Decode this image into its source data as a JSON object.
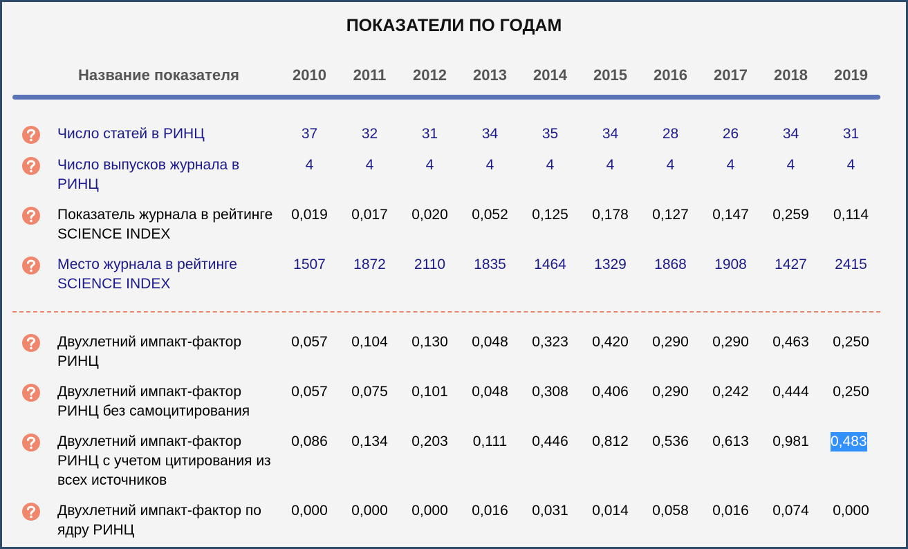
{
  "header": {
    "title": "ПОКАЗАТЕЛИ ПО ГОДАМ",
    "label_column": "Название показателя",
    "years": [
      "2010",
      "2011",
      "2012",
      "2013",
      "2014",
      "2015",
      "2016",
      "2017",
      "2018",
      "2019"
    ]
  },
  "table": {
    "rows": [
      {
        "label": "Число статей в РИНЦ",
        "color": "#1a1a8c",
        "values": [
          "37",
          "32",
          "31",
          "34",
          "35",
          "34",
          "28",
          "26",
          "34",
          "31"
        ]
      },
      {
        "label": "Число выпусков журнала в РИНЦ",
        "color": "#1a1a8c",
        "values": [
          "4",
          "4",
          "4",
          "4",
          "4",
          "4",
          "4",
          "4",
          "4",
          "4"
        ]
      },
      {
        "label": "Показатель журнала в рейтинге SCIENCE INDEX",
        "color": "#000000",
        "values": [
          "0,019",
          "0,017",
          "0,020",
          "0,052",
          "0,125",
          "0,178",
          "0,127",
          "0,147",
          "0,259",
          "0,114"
        ]
      },
      {
        "label": "Место журнала в рейтинге SCIENCE INDEX",
        "color": "#1a1a8c",
        "values": [
          "1507",
          "1872",
          "2110",
          "1835",
          "1464",
          "1329",
          "1868",
          "1908",
          "1427",
          "2415"
        ]
      },
      {
        "label": "Двухлетний импакт-фактор РИНЦ",
        "color": "#000000",
        "values": [
          "0,057",
          "0,104",
          "0,130",
          "0,048",
          "0,323",
          "0,420",
          "0,290",
          "0,290",
          "0,463",
          "0,250"
        ]
      },
      {
        "label": "Двухлетний импакт-фактор РИНЦ без самоцитирования",
        "color": "#000000",
        "values": [
          "0,057",
          "0,075",
          "0,101",
          "0,048",
          "0,308",
          "0,406",
          "0,290",
          "0,242",
          "0,444",
          "0,250"
        ]
      },
      {
        "label": "Двухлетний импакт-фактор РИНЦ с учетом цитирования из всех источников",
        "color": "#000000",
        "values": [
          "0,086",
          "0,134",
          "0,203",
          "0,111",
          "0,446",
          "0,812",
          "0,536",
          "0,613",
          "0,981",
          "0,483"
        ]
      },
      {
        "label": "Двухлетний импакт-фактор по ядру РИНЦ",
        "color": "#000000",
        "values": [
          "0,000",
          "0,000",
          "0,000",
          "0,016",
          "0,031",
          "0,014",
          "0,058",
          "0,016",
          "0,074",
          "0,000"
        ]
      }
    ]
  }
}
